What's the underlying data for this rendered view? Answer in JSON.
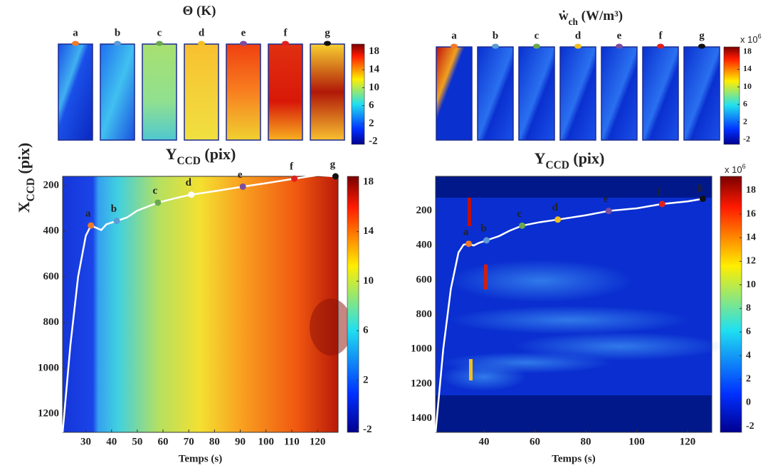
{
  "chart_data": [
    {
      "type": "strips",
      "title": {
        "main": "Θ (K)"
      },
      "labels": [
        "a",
        "b",
        "c",
        "d",
        "e",
        "f",
        "g"
      ],
      "colors": [
        "#f07a2a",
        "#5b9bd5",
        "#6aa84f",
        "#f0c020",
        "#7b4ea0",
        "#e0201e",
        "#111111"
      ],
      "xlabel": {
        "main": "Y",
        "sub": "CCD",
        "rest": " (pix)"
      },
      "clim": [
        -2.6,
        19.7
      ],
      "cticks": [
        -2,
        2,
        6,
        10,
        14,
        18
      ]
    },
    {
      "type": "strips",
      "title": {
        "main": "ẇ",
        "sub": "ch",
        "rest": " (W/m³)"
      },
      "labels": [
        "a",
        "b",
        "c",
        "d",
        "e",
        "f",
        "g"
      ],
      "colors": [
        "#f07a2a",
        "#5b9bd5",
        "#6aa84f",
        "#f0c020",
        "#7b4ea0",
        "#e0201e",
        "#111111"
      ],
      "xlabel": {
        "main": "Y",
        "sub": "CCD",
        "rest": " (pix)"
      },
      "clim": [
        -3.1,
        19.1
      ],
      "cticks": [
        -2,
        2,
        6,
        10,
        14,
        18
      ],
      "cscale": {
        "main": "x 10",
        "sup": "6"
      }
    },
    {
      "type": "heatmap",
      "xlabel": "Temps (s)",
      "ylabel": {
        "main": "X",
        "sub": "CCD",
        "rest": " (pix)"
      },
      "xlim": [
        21,
        128
      ],
      "ylim": [
        1280,
        160
      ],
      "xticks": [
        30,
        40,
        50,
        60,
        70,
        80,
        90,
        100,
        110,
        120
      ],
      "yticks": [
        200,
        400,
        600,
        800,
        1000,
        1200
      ],
      "clim": [
        -2.2,
        18.46
      ],
      "cticks": [
        -2,
        2,
        6,
        10,
        14,
        18
      ],
      "curve": {
        "color": "#ffffff",
        "x": [
          21,
          24,
          27,
          30,
          32,
          34,
          36,
          38,
          42,
          46,
          50,
          58,
          65,
          71,
          80,
          91,
          100,
          111,
          120,
          127
        ],
        "y": [
          1280,
          900,
          600,
          420,
          375,
          385,
          395,
          370,
          355,
          340,
          310,
          275,
          255,
          240,
          225,
          205,
          190,
          170,
          155,
          160
        ]
      },
      "points": {
        "labels": [
          "a",
          "b",
          "c",
          "d",
          "e",
          "f",
          "g"
        ],
        "x": [
          32,
          42,
          58,
          71,
          91,
          111,
          127
        ],
        "y": [
          375,
          355,
          275,
          240,
          205,
          170,
          160
        ],
        "colors": [
          "#f07a2a",
          "#5b9bd5",
          "#6aa84f",
          "#ffffff",
          "#7b4ea0",
          "#e0201e",
          "#111111"
        ]
      }
    },
    {
      "type": "heatmap",
      "xlabel": "Temps (s)",
      "xlim": [
        21,
        129.5
      ],
      "ylim": [
        1480,
        0
      ],
      "xticks": [
        40,
        60,
        80,
        100,
        120
      ],
      "yticks": [
        200,
        400,
        600,
        800,
        1000,
        1200,
        1400
      ],
      "clim": [
        -2.5,
        19.2
      ],
      "cticks": [
        -2,
        0,
        2,
        4,
        6,
        8,
        10,
        12,
        14,
        16,
        18
      ],
      "cscale": {
        "main": "x 10",
        "sup": "6"
      },
      "curve": {
        "color": "#ffffff",
        "x": [
          21,
          24,
          27,
          30,
          32,
          34,
          36,
          38,
          41,
          46,
          50,
          55,
          62,
          69,
          80,
          89,
          100,
          110,
          120,
          126
        ],
        "y": [
          1480,
          1000,
          650,
          440,
          395,
          390,
          400,
          385,
          370,
          345,
          315,
          285,
          265,
          250,
          225,
          200,
          185,
          160,
          145,
          130
        ]
      },
      "points": {
        "labels": [
          "a",
          "b",
          "c",
          "d",
          "e",
          "f",
          "g"
        ],
        "x": [
          34,
          41,
          55,
          69,
          89,
          110,
          126
        ],
        "y": [
          390,
          370,
          285,
          250,
          200,
          160,
          130
        ],
        "colors": [
          "#f07a2a",
          "#5b9bd5",
          "#6aa84f",
          "#f0c020",
          "#7b4ea0",
          "#e0201e",
          "#111111"
        ]
      }
    }
  ]
}
